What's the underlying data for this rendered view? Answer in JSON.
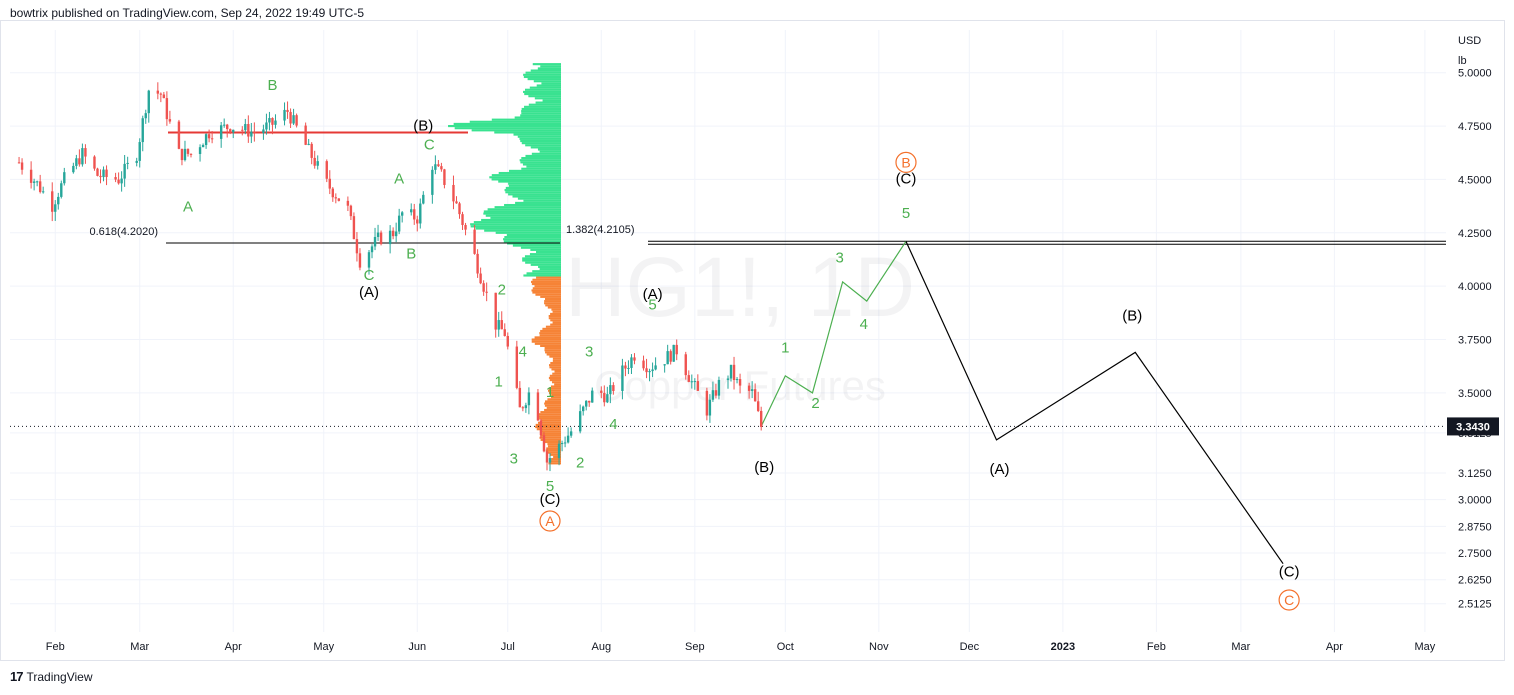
{
  "header": {
    "published": "bowtrix published on TradingView.com, Sep 24, 2022 19:49 UTC-5"
  },
  "footer": {
    "brand": "TradingView"
  },
  "colors": {
    "up": "#26a69a",
    "down": "#ef5350",
    "wave_green": "#4caf50",
    "profile_green": "#2ee08a",
    "profile_orange": "#f57c2b",
    "circle_orange": "#f4712c",
    "resistance_red": "#e53935",
    "proj_black": "#000000",
    "grid": "#f0f3fa"
  },
  "chart_data": {
    "type": "candlestick",
    "symbol_watermark": "HG1!, 1D",
    "name_watermark": "Copper Futures",
    "currency": "USD",
    "unit": "lb",
    "last_price": "3.3430",
    "y_range": [
      2.38,
      5.2
    ],
    "y_ticks": [
      "5.0000",
      "4.7500",
      "4.5000",
      "4.2500",
      "4.0000",
      "3.7500",
      "3.5000",
      "3.3125",
      "3.1250",
      "3.0000",
      "2.8750",
      "2.7500",
      "2.6250",
      "2.5125"
    ],
    "x_ticks": [
      "Feb",
      "Mar",
      "Apr",
      "May",
      "Jun",
      "Jul",
      "Aug",
      "Sep",
      "Oct",
      "Nov",
      "Dec",
      "2023",
      "Feb",
      "Mar",
      "Apr",
      "May"
    ],
    "candle_path": [
      [
        "2022-01-20",
        4.58
      ],
      [
        "2022-01-26",
        4.48
      ],
      [
        "2022-01-31",
        4.38
      ],
      [
        "2022-02-04",
        4.5
      ],
      [
        "2022-02-10",
        4.62
      ],
      [
        "2022-02-15",
        4.52
      ],
      [
        "2022-02-22",
        4.5
      ],
      [
        "2022-02-28",
        4.62
      ],
      [
        "2022-03-04",
        4.92
      ],
      [
        "2022-03-08",
        4.9
      ],
      [
        "2022-03-14",
        4.62
      ],
      [
        "2022-03-18",
        4.62
      ],
      [
        "2022-03-24",
        4.72
      ],
      [
        "2022-03-31",
        4.75
      ],
      [
        "2022-04-08",
        4.72
      ],
      [
        "2022-04-14",
        4.76
      ],
      [
        "2022-04-19",
        4.82
      ],
      [
        "2022-04-25",
        4.66
      ],
      [
        "2022-05-02",
        4.48
      ],
      [
        "2022-05-09",
        4.36
      ],
      [
        "2022-05-13",
        4.12
      ],
      [
        "2022-05-19",
        4.22
      ],
      [
        "2022-05-24",
        4.25
      ],
      [
        "2022-05-27",
        4.34
      ],
      [
        "2022-06-01",
        4.32
      ],
      [
        "2022-06-06",
        4.57
      ],
      [
        "2022-06-09",
        4.52
      ],
      [
        "2022-06-14",
        4.38
      ],
      [
        "2022-06-20",
        4.14
      ],
      [
        "2022-06-27",
        3.82
      ],
      [
        "2022-06-30",
        3.78
      ],
      [
        "2022-07-05",
        3.42
      ],
      [
        "2022-07-08",
        3.5
      ],
      [
        "2022-07-11",
        3.4
      ],
      [
        "2022-07-14",
        3.18
      ],
      [
        "2022-07-18",
        3.25
      ],
      [
        "2022-07-22",
        3.32
      ],
      [
        "2022-07-26",
        3.42
      ],
      [
        "2022-07-30",
        3.52
      ],
      [
        "2022-08-03",
        3.48
      ],
      [
        "2022-08-08",
        3.6
      ],
      [
        "2022-08-12",
        3.68
      ],
      [
        "2022-08-17",
        3.62
      ],
      [
        "2022-08-22",
        3.66
      ],
      [
        "2022-08-26",
        3.7
      ],
      [
        "2022-08-31",
        3.55
      ],
      [
        "2022-09-05",
        3.42
      ],
      [
        "2022-09-09",
        3.54
      ],
      [
        "2022-09-13",
        3.6
      ],
      [
        "2022-09-16",
        3.52
      ],
      [
        "2022-09-20",
        3.5
      ],
      [
        "2022-09-23",
        3.343
      ]
    ],
    "volume_profile_poc": 4.75,
    "fib_left": {
      "label": "0.618(4.2020)",
      "value": 4.202
    },
    "fib_right": {
      "label": "1.382(4.2105)",
      "value": 4.2105
    },
    "resistance_line": {
      "value": 4.72
    },
    "green_projection": [
      [
        "2022-09-23",
        3.343
      ],
      [
        "2022-10-01",
        3.58
      ],
      [
        "2022-10-10",
        3.5
      ],
      [
        "2022-10-20",
        4.02
      ],
      [
        "2022-10-28",
        3.93
      ],
      [
        "2022-11-10",
        4.21
      ]
    ],
    "black_projection": [
      [
        "2022-11-10",
        4.21
      ],
      [
        "2022-12-10",
        3.28
      ],
      [
        "2023-01-25",
        3.69
      ],
      [
        "2023-03-15",
        2.7
      ]
    ],
    "wave_labels": [
      {
        "text": "B",
        "date": "2022-04-14",
        "price": 4.92,
        "color": "green"
      },
      {
        "text": "A",
        "date": "2022-03-17",
        "price": 4.35,
        "color": "green"
      },
      {
        "text": "(B)",
        "date": "2022-06-03",
        "price": 4.73,
        "color": "black"
      },
      {
        "text": "C",
        "date": "2022-06-05",
        "price": 4.64,
        "color": "green"
      },
      {
        "text": "A",
        "date": "2022-05-26",
        "price": 4.48,
        "color": "green"
      },
      {
        "text": "C",
        "date": "2022-05-16",
        "price": 4.03,
        "color": "green"
      },
      {
        "text": "B",
        "date": "2022-05-30",
        "price": 4.13,
        "color": "green"
      },
      {
        "text": "(A)",
        "date": "2022-05-16",
        "price": 3.95,
        "color": "black"
      },
      {
        "text": "2",
        "date": "2022-06-29",
        "price": 3.96,
        "color": "green"
      },
      {
        "text": "4",
        "date": "2022-07-06",
        "price": 3.67,
        "color": "green"
      },
      {
        "text": "1",
        "date": "2022-06-28",
        "price": 3.53,
        "color": "green"
      },
      {
        "text": "1",
        "date": "2022-07-15",
        "price": 3.48,
        "color": "green"
      },
      {
        "text": "3",
        "date": "2022-07-03",
        "price": 3.17,
        "color": "green"
      },
      {
        "text": "2",
        "date": "2022-07-25",
        "price": 3.15,
        "color": "green"
      },
      {
        "text": "4",
        "date": "2022-08-05",
        "price": 3.33,
        "color": "green"
      },
      {
        "text": "3",
        "date": "2022-07-28",
        "price": 3.67,
        "color": "green"
      },
      {
        "text": "(A)",
        "date": "2022-08-18",
        "price": 3.94,
        "color": "black"
      },
      {
        "text": "5",
        "date": "2022-08-18",
        "price": 3.89,
        "color": "green"
      },
      {
        "text": "5",
        "date": "2022-07-15",
        "price": 3.04,
        "color": "green"
      },
      {
        "text": "(C)",
        "date": "2022-07-15",
        "price": 2.98,
        "color": "black"
      },
      {
        "text": "(B)",
        "date": "2022-09-24",
        "price": 3.13,
        "color": "black"
      },
      {
        "text": "1",
        "date": "2022-10-01",
        "price": 3.69,
        "color": "green"
      },
      {
        "text": "2",
        "date": "2022-10-11",
        "price": 3.43,
        "color": "green"
      },
      {
        "text": "3",
        "date": "2022-10-19",
        "price": 4.11,
        "color": "green"
      },
      {
        "text": "4",
        "date": "2022-10-27",
        "price": 3.8,
        "color": "green"
      },
      {
        "text": "(C)",
        "date": "2022-11-10",
        "price": 4.48,
        "color": "black"
      },
      {
        "text": "5",
        "date": "2022-11-10",
        "price": 4.32,
        "color": "green"
      },
      {
        "text": "(A)",
        "date": "2022-12-11",
        "price": 3.12,
        "color": "black"
      },
      {
        "text": "(B)",
        "date": "2023-01-24",
        "price": 3.84,
        "color": "black"
      },
      {
        "text": "(C)",
        "date": "2023-03-17",
        "price": 2.64,
        "color": "black"
      }
    ],
    "circled_labels": [
      {
        "text": "B",
        "date": "2022-11-10",
        "price": 4.58
      },
      {
        "text": "A",
        "date": "2022-07-15",
        "price": 2.9
      },
      {
        "text": "C",
        "date": "2023-03-17",
        "price": 2.53
      }
    ]
  }
}
